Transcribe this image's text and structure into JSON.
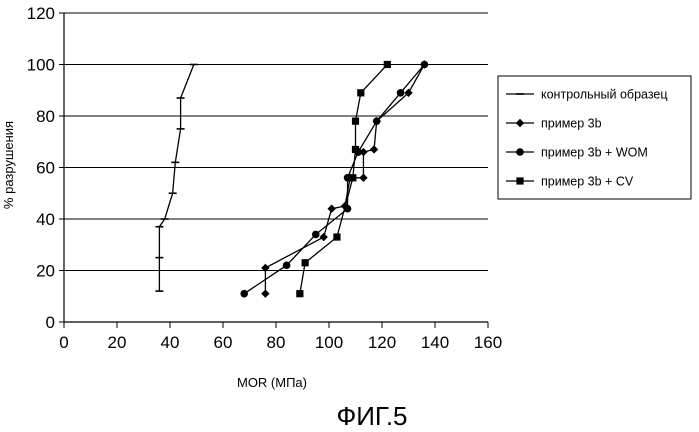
{
  "figure_caption": "ФИГ.5",
  "chart_data": {
    "type": "scatter",
    "connected": true,
    "title": "",
    "xlabel": "MOR (МПа)",
    "ylabel": "% разрушения",
    "xlim": [
      0,
      160
    ],
    "ylim": [
      0,
      120
    ],
    "x_ticks": [
      0,
      20,
      40,
      60,
      80,
      100,
      120,
      140,
      160
    ],
    "y_ticks": [
      0,
      20,
      40,
      60,
      80,
      100,
      120
    ],
    "grid": "horizontal",
    "legend_position": "right",
    "series": [
      {
        "name": "контрольный образец",
        "marker": "tick",
        "color": "#000000",
        "points": [
          {
            "x": 36,
            "y": 12
          },
          {
            "x": 36,
            "y": 25
          },
          {
            "x": 36,
            "y": 37
          },
          {
            "x": 38,
            "y": 40
          },
          {
            "x": 41,
            "y": 50
          },
          {
            "x": 42,
            "y": 62
          },
          {
            "x": 44,
            "y": 75
          },
          {
            "x": 44,
            "y": 87
          },
          {
            "x": 49,
            "y": 100
          }
        ]
      },
      {
        "name": "пример 3b",
        "marker": "diamond",
        "color": "#000000",
        "points": [
          {
            "x": 76,
            "y": 11
          },
          {
            "x": 76,
            "y": 21
          },
          {
            "x": 98,
            "y": 33
          },
          {
            "x": 101,
            "y": 44
          },
          {
            "x": 106,
            "y": 45
          },
          {
            "x": 108,
            "y": 56
          },
          {
            "x": 113,
            "y": 56
          },
          {
            "x": 113,
            "y": 66
          },
          {
            "x": 117,
            "y": 67
          },
          {
            "x": 118,
            "y": 78
          },
          {
            "x": 130,
            "y": 89
          },
          {
            "x": 136,
            "y": 100
          }
        ]
      },
      {
        "name": "пример 3b + WOM",
        "marker": "circle",
        "color": "#000000",
        "points": [
          {
            "x": 68,
            "y": 11
          },
          {
            "x": 84,
            "y": 22
          },
          {
            "x": 95,
            "y": 34
          },
          {
            "x": 107,
            "y": 44
          },
          {
            "x": 107,
            "y": 56
          },
          {
            "x": 111,
            "y": 66
          },
          {
            "x": 118,
            "y": 78
          },
          {
            "x": 127,
            "y": 89
          },
          {
            "x": 136,
            "y": 100
          }
        ]
      },
      {
        "name": "пример 3b + CV",
        "marker": "square",
        "color": "#000000",
        "points": [
          {
            "x": 89,
            "y": 11
          },
          {
            "x": 91,
            "y": 23
          },
          {
            "x": 103,
            "y": 33
          },
          {
            "x": 109,
            "y": 56
          },
          {
            "x": 110,
            "y": 67
          },
          {
            "x": 110,
            "y": 78
          },
          {
            "x": 112,
            "y": 89
          },
          {
            "x": 122,
            "y": 100
          }
        ]
      }
    ]
  }
}
